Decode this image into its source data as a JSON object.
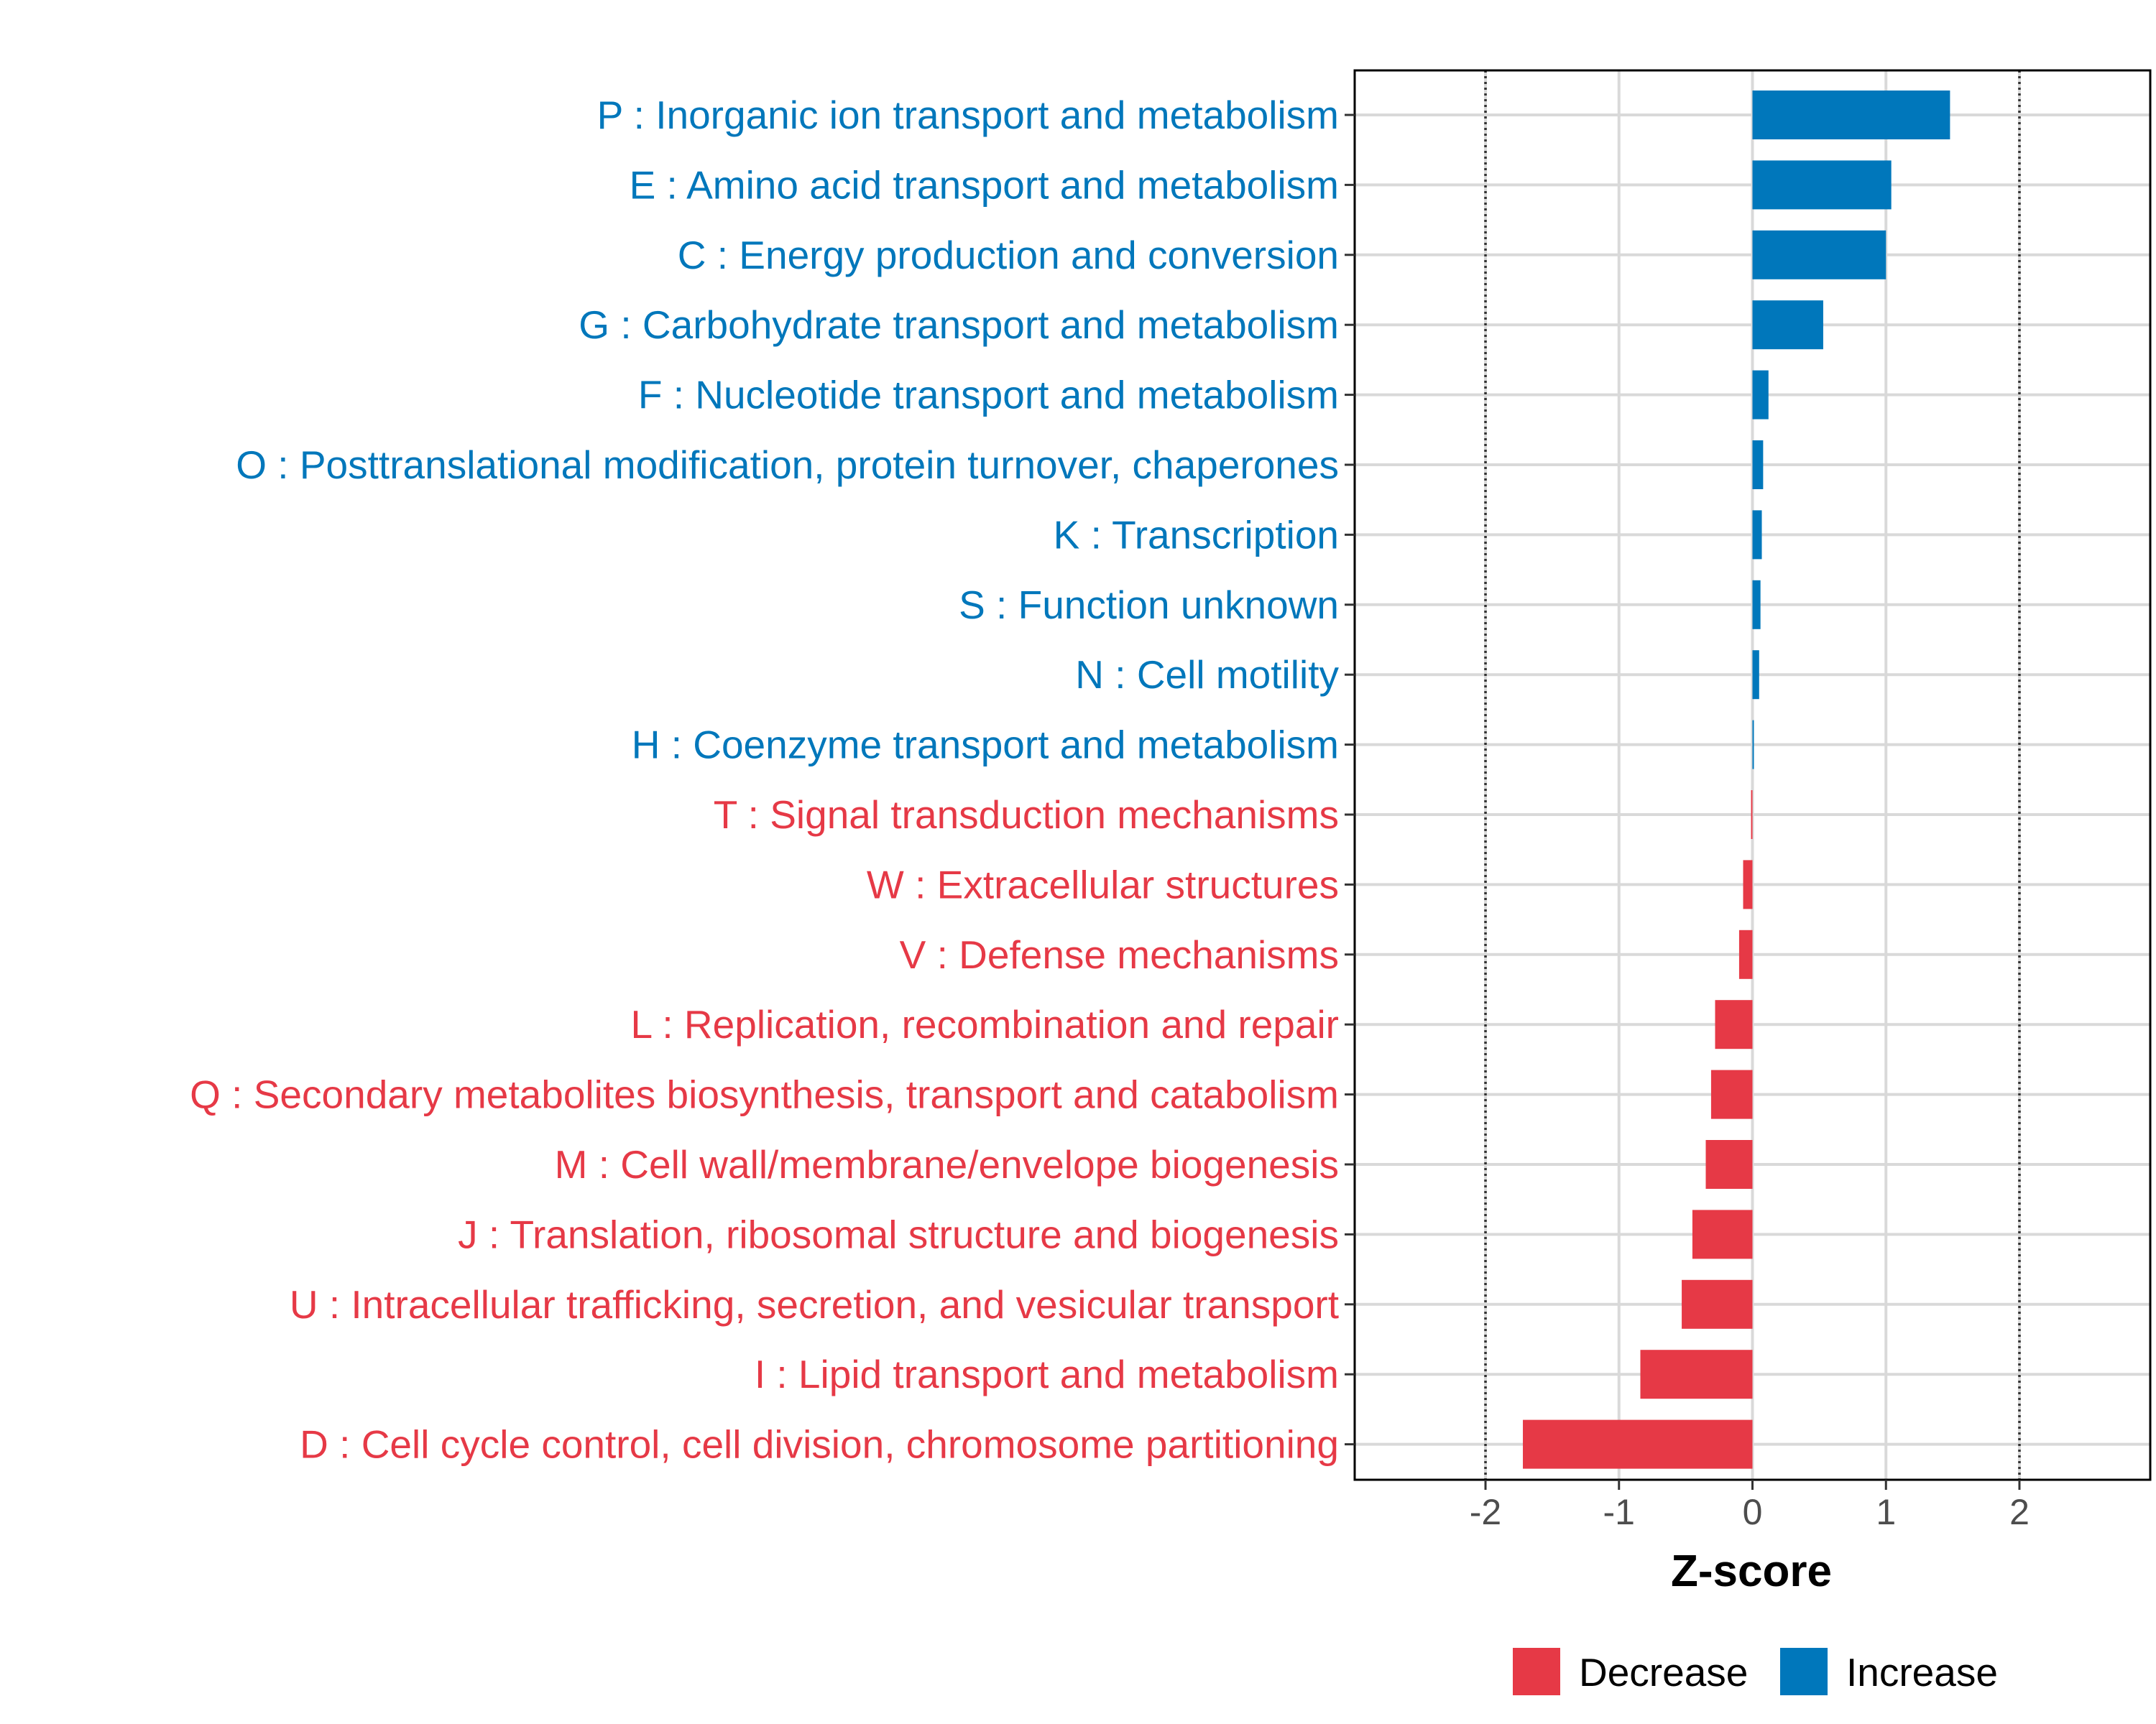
{
  "chart_data": {
    "type": "bar",
    "orientation": "horizontal",
    "title": "",
    "xlabel": "Z-score",
    "ylabel": "",
    "xlim": [
      -2.98,
      2.98
    ],
    "xticks": [
      -2,
      -1,
      0,
      1,
      2
    ],
    "xtick_labels": [
      "-2",
      "-1",
      "0",
      "1",
      "2"
    ],
    "reference_lines": [
      -2,
      2
    ],
    "grid": true,
    "legend_position": "bottom",
    "colors": {
      "Decrease": "#e63946",
      "Increase": "#0077bb"
    },
    "legend": [
      {
        "label": "Decrease",
        "group": "Decrease"
      },
      {
        "label": "Increase",
        "group": "Increase"
      }
    ],
    "categories": [
      "P : Inorganic ion transport and metabolism",
      "E : Amino acid transport and metabolism",
      "C : Energy production and conversion",
      "G : Carbohydrate transport and metabolism",
      "F : Nucleotide transport and metabolism",
      "O : Posttranslational modification, protein turnover, chaperones",
      "K : Transcription",
      "S : Function unknown",
      "N : Cell motility",
      "H : Coenzyme transport and metabolism",
      "T : Signal transduction mechanisms",
      "W : Extracellular structures",
      "V : Defense mechanisms",
      "L : Replication, recombination and repair",
      "Q : Secondary metabolites biosynthesis, transport and catabolism",
      "M : Cell wall/membrane/envelope biogenesis",
      "J : Translation, ribosomal structure and biogenesis",
      "U : Intracellular trafficking, secretion, and vesicular transport",
      "I : Lipid transport and metabolism",
      "D : Cell cycle control, cell division, chromosome partitioning"
    ],
    "values": [
      1.48,
      1.04,
      1.0,
      0.53,
      0.12,
      0.08,
      0.07,
      0.06,
      0.05,
      0.01,
      -0.01,
      -0.07,
      -0.1,
      -0.28,
      -0.31,
      -0.35,
      -0.45,
      -0.53,
      -0.84,
      -1.72
    ],
    "groups": [
      "Increase",
      "Increase",
      "Increase",
      "Increase",
      "Increase",
      "Increase",
      "Increase",
      "Increase",
      "Increase",
      "Increase",
      "Decrease",
      "Decrease",
      "Decrease",
      "Decrease",
      "Decrease",
      "Decrease",
      "Decrease",
      "Decrease",
      "Decrease",
      "Decrease"
    ]
  }
}
